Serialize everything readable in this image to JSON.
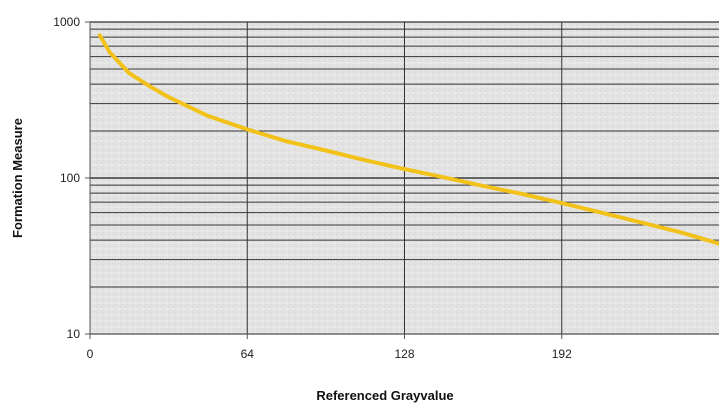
{
  "chart_data": {
    "type": "line",
    "title": "",
    "xlabel": "Referenced Grayvalue",
    "ylabel": "Formation Measure",
    "xlim": [
      0,
      256
    ],
    "ylim": [
      10,
      1000
    ],
    "y_scale": "log",
    "x_ticks": [
      0,
      64,
      128,
      192
    ],
    "x_tick_labels": [
      "0",
      "64",
      "128",
      "192"
    ],
    "y_ticks": [
      10,
      100,
      1000
    ],
    "y_tick_labels": [
      "10",
      "100",
      "1000"
    ],
    "grid": true,
    "legend": "none",
    "series": [
      {
        "color": "#f2c21a",
        "x": [
          4,
          8,
          16,
          24,
          32,
          48,
          64,
          80,
          96,
          112,
          128,
          144,
          160,
          176,
          192,
          208,
          224,
          240,
          256
        ],
        "y": [
          820,
          640,
          470,
          390,
          330,
          250,
          205,
          172,
          150,
          130,
          114,
          101,
          89,
          79,
          69,
          60,
          52,
          45,
          38
        ]
      }
    ]
  },
  "colors": {
    "plot_background": "#e6e6e6",
    "grid": "#333333",
    "series": "#f2c21a"
  }
}
